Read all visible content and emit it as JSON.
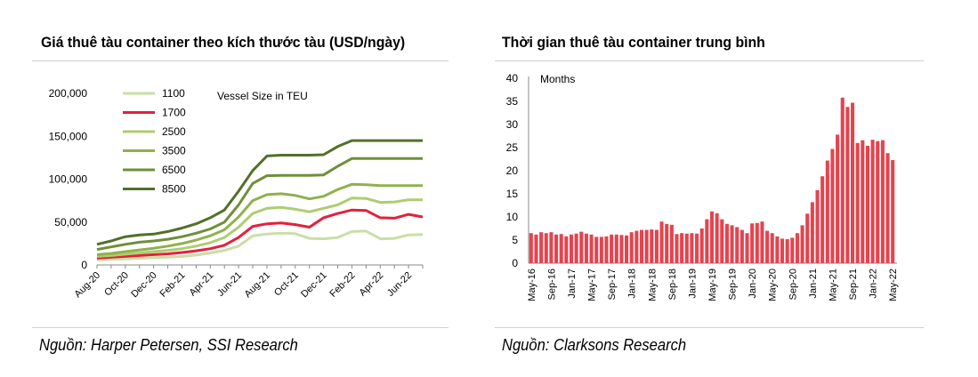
{
  "left": {
    "title": "Giá thuê tàu container theo kích thước tàu (USD/ngày)",
    "source": "Nguồn: Harper Petersen, SSI Research"
  },
  "right": {
    "title": "Thời gian thuê tàu container trung bình",
    "source": "Nguồn: Clarksons Research"
  },
  "chart_data": [
    {
      "type": "line",
      "title": "Giá thuê tàu container theo kích thước tàu (USD/ngày)",
      "legend_title": "Vessel Size in TEU",
      "ylim": [
        0,
        200000
      ],
      "yticks": [
        0,
        50000,
        100000,
        150000,
        200000
      ],
      "ytick_labels": [
        "0",
        "50,000",
        "100,000",
        "150,000",
        "200,000"
      ],
      "x": [
        "Aug-20",
        "Sep-20",
        "Oct-20",
        "Nov-20",
        "Dec-20",
        "Jan-21",
        "Feb-21",
        "Mar-21",
        "Apr-21",
        "May-21",
        "Jun-21",
        "Jul-21",
        "Aug-21",
        "Sep-21",
        "Oct-21",
        "Nov-21",
        "Dec-21",
        "Jan-22",
        "Feb-22",
        "Mar-22",
        "Apr-22",
        "May-22",
        "Jun-22",
        "Jul-22"
      ],
      "xtick_labels": [
        "Aug-20",
        "Oct-20",
        "Dec-20",
        "Feb-21",
        "Apr-21",
        "Jun-21",
        "Aug-21",
        "Oct-21",
        "Dec-21",
        "Feb-22",
        "Apr-22",
        "Jun-22"
      ],
      "xlabel": "",
      "ylabel": "",
      "series": [
        {
          "name": "1100",
          "color": "#c9dfa5",
          "values": [
            6000,
            6500,
            7000,
            7800,
            8500,
            9000,
            10000,
            11500,
            14000,
            17000,
            22000,
            34000,
            36000,
            37000,
            36500,
            31000,
            30500,
            32000,
            39000,
            39500,
            30500,
            31000,
            35000,
            35500
          ]
        },
        {
          "name": "1700",
          "color": "#e3203c",
          "values": [
            8000,
            9000,
            10000,
            11000,
            12000,
            13000,
            14500,
            16500,
            19000,
            23000,
            32000,
            45000,
            48000,
            49000,
            47000,
            44000,
            55000,
            60000,
            64000,
            63500,
            55000,
            54500,
            59000,
            56000
          ]
        },
        {
          "name": "2500",
          "color": "#aecc72",
          "values": [
            10000,
            11000,
            12500,
            14000,
            15500,
            17000,
            19000,
            22000,
            26000,
            32000,
            44000,
            60000,
            66000,
            67000,
            65000,
            62000,
            66000,
            70000,
            78000,
            77500,
            73000,
            73500,
            76000,
            76000
          ]
        },
        {
          "name": "3500",
          "color": "#8fb14b",
          "values": [
            12000,
            13500,
            15500,
            17500,
            19500,
            22000,
            25000,
            29000,
            34000,
            41000,
            56000,
            75000,
            82000,
            83000,
            81000,
            77000,
            80000,
            88000,
            94000,
            93500,
            92500,
            92500,
            92500,
            92500
          ]
        },
        {
          "name": "6500",
          "color": "#6f8f38",
          "values": [
            18000,
            21000,
            24000,
            26500,
            28000,
            30000,
            33000,
            37000,
            42000,
            50000,
            70000,
            95000,
            104000,
            104500,
            104500,
            104500,
            105000,
            115000,
            124000,
            124000,
            124000,
            124000,
            124000,
            124000
          ]
        },
        {
          "name": "8500",
          "color": "#546f27",
          "values": [
            24000,
            28000,
            33000,
            35000,
            36000,
            39000,
            43000,
            48000,
            55000,
            64000,
            86000,
            110000,
            127000,
            128000,
            128000,
            128000,
            128500,
            138000,
            145000,
            145000,
            145000,
            145000,
            145000,
            145000
          ]
        }
      ]
    },
    {
      "type": "bar",
      "title": "Thời gian thuê tàu container trung bình",
      "ylabel": "Months",
      "ylim": [
        0,
        40
      ],
      "yticks": [
        0,
        5,
        10,
        15,
        20,
        25,
        30,
        35,
        40
      ],
      "color": "#e3444f",
      "categories": [
        "May-16",
        "Jun-16",
        "Jul-16",
        "Aug-16",
        "Sep-16",
        "Oct-16",
        "Nov-16",
        "Dec-16",
        "Jan-17",
        "Feb-17",
        "Mar-17",
        "Apr-17",
        "May-17",
        "Jun-17",
        "Jul-17",
        "Aug-17",
        "Sep-17",
        "Oct-17",
        "Nov-17",
        "Dec-17",
        "Jan-18",
        "Feb-18",
        "Mar-18",
        "Apr-18",
        "May-18",
        "Jun-18",
        "Jul-18",
        "Aug-18",
        "Sep-18",
        "Oct-18",
        "Nov-18",
        "Dec-18",
        "Jan-19",
        "Feb-19",
        "Mar-19",
        "Apr-19",
        "May-19",
        "Jun-19",
        "Jul-19",
        "Aug-19",
        "Sep-19",
        "Oct-19",
        "Nov-19",
        "Dec-19",
        "Jan-20",
        "Feb-20",
        "Mar-20",
        "Apr-20",
        "May-20",
        "Jun-20",
        "Jul-20",
        "Aug-20",
        "Sep-20",
        "Oct-20",
        "Nov-20",
        "Dec-20",
        "Jan-21",
        "Feb-21",
        "Mar-21",
        "Apr-21",
        "May-21",
        "Jun-21",
        "Jul-21",
        "Aug-21",
        "Sep-21",
        "Oct-21",
        "Nov-21",
        "Dec-21",
        "Jan-22",
        "Feb-22",
        "Mar-22",
        "Apr-22",
        "May-22"
      ],
      "values": [
        6.5,
        6.2,
        6.7,
        6.5,
        6.7,
        6.2,
        6.3,
        5.8,
        6.2,
        6.4,
        6.8,
        6.4,
        6.2,
        5.7,
        5.7,
        5.8,
        6.2,
        6.2,
        6.1,
        6.0,
        6.7,
        7.0,
        7.2,
        7.2,
        7.3,
        7.2,
        9.0,
        8.5,
        8.3,
        6.3,
        6.5,
        6.4,
        6.5,
        6.4,
        7.5,
        9.5,
        11.2,
        10.8,
        9.5,
        8.5,
        8.2,
        7.8,
        7.2,
        6.5,
        8.6,
        8.7,
        9.0,
        7.0,
        6.5,
        5.8,
        5.3,
        5.2,
        5.5,
        6.5,
        8.2,
        10.7,
        13.2,
        15.8,
        18.8,
        22.2,
        24.7,
        27.8,
        35.8,
        33.8,
        34.7,
        26.0,
        26.6,
        25.4,
        26.7,
        26.4,
        26.6,
        23.8,
        22.3
      ],
      "xtick_labels": [
        "May-16",
        "Sep-16",
        "Jan-17",
        "May-17",
        "Sep-17",
        "Jan-18",
        "May-18",
        "Sep-18",
        "Jan-19",
        "May-19",
        "Sep-19",
        "Jan-20",
        "May-20",
        "Sep-20",
        "Jan-21",
        "May-21",
        "Sep-21",
        "Jan-22",
        "May-22"
      ],
      "xlabel": ""
    }
  ]
}
